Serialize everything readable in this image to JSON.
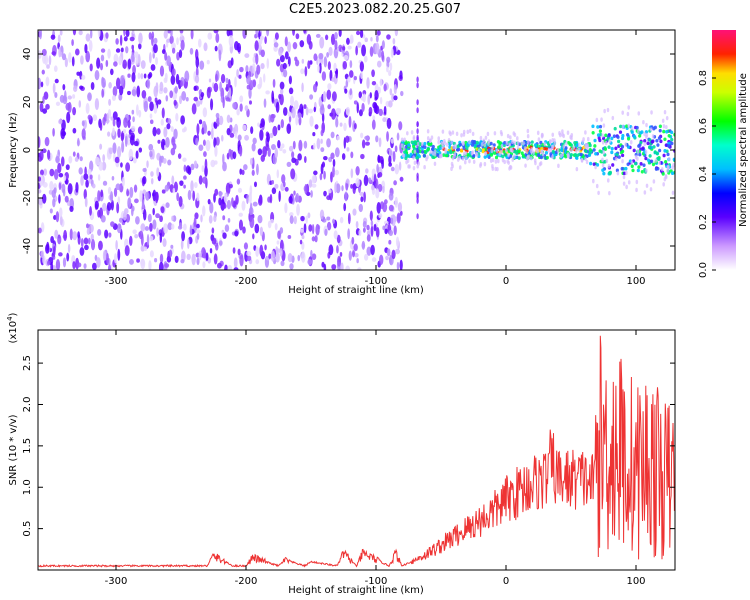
{
  "title": "C2E5.2023.082.20.25.G07",
  "chart_data": [
    {
      "type": "heatmap",
      "name": "spectrogram",
      "xlabel": "Height of straight line (km)",
      "ylabel": "Frequency (Hz)",
      "xlim": [
        -360,
        130
      ],
      "ylim": [
        -50,
        50
      ],
      "xticks": [
        -300,
        -200,
        -100,
        0,
        100
      ],
      "yticks": [
        -40,
        -20,
        0,
        20,
        40
      ],
      "noise_region_km": [
        -360,
        -80
      ],
      "signal_band_center_hz": 0,
      "signal_band_halfwidth_hz": 4,
      "colorbar": {
        "label": "Normalized spectral amplitude",
        "range": [
          0,
          1
        ],
        "ticks": [
          0.0,
          0.2,
          0.4,
          0.6,
          0.8
        ]
      }
    },
    {
      "type": "line",
      "name": "snr",
      "xlabel": "Height of straight line (km)",
      "ylabel": "SNR (10 * v/v)",
      "scale_label": "(x10",
      "scale_exp": "4",
      "scale_close": ")",
      "xlim": [
        -360,
        130
      ],
      "ylim": [
        0,
        2.9
      ],
      "xticks": [
        -300,
        -200,
        -100,
        0,
        100
      ],
      "yticks": [
        0.5,
        1.0,
        1.5,
        2.0,
        2.5
      ],
      "series_color": "#ee3333",
      "x": [
        -360,
        -340,
        -300,
        -250,
        -230,
        -225,
        -210,
        -200,
        -195,
        -175,
        -170,
        -155,
        -150,
        -130,
        -125,
        -115,
        -110,
        -90,
        -85,
        -80,
        -70,
        -60,
        -50,
        -40,
        -30,
        -20,
        -10,
        0,
        10,
        20,
        30,
        35,
        40,
        50,
        60,
        68,
        70,
        80,
        90,
        100,
        110,
        120,
        130
      ],
      "y": [
        0.05,
        0.05,
        0.05,
        0.05,
        0.05,
        0.17,
        0.05,
        0.05,
        0.15,
        0.05,
        0.12,
        0.05,
        0.1,
        0.05,
        0.2,
        0.05,
        0.2,
        0.05,
        0.2,
        0.05,
        0.12,
        0.2,
        0.3,
        0.4,
        0.5,
        0.6,
        0.7,
        0.85,
        0.95,
        1.05,
        1.1,
        1.3,
        1.1,
        1.1,
        1.1,
        1.05,
        1.5,
        1.5,
        1.4,
        1.2,
        1.3,
        1.1,
        1.1
      ]
    }
  ]
}
